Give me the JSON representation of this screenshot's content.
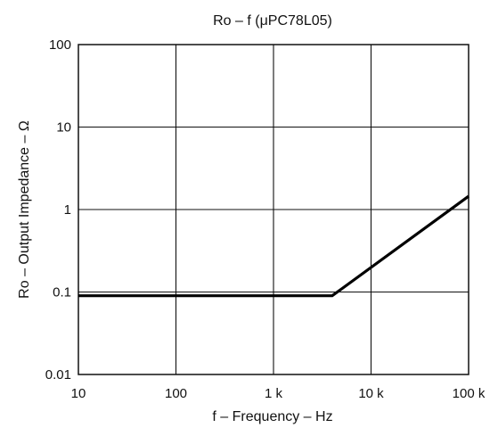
{
  "chart_data": {
    "type": "line",
    "title": "Ro – f (μPC78L05)",
    "xlabel": "f – Frequency – Hz",
    "ylabel": "Ro – Output Impedance – Ω",
    "x_scale": "log",
    "y_scale": "log",
    "xlim": [
      10,
      100000
    ],
    "ylim": [
      0.01,
      100
    ],
    "x_ticks": [
      10,
      100,
      1000,
      10000,
      100000
    ],
    "x_tick_labels": [
      "10",
      "100",
      "1 k",
      "10 k",
      "100 k"
    ],
    "y_ticks": [
      0.01,
      0.1,
      1,
      10,
      100
    ],
    "y_tick_labels": [
      "0.01",
      "0.1",
      "1",
      "10",
      "100"
    ],
    "grid": true,
    "series": [
      {
        "x": [
          10,
          4000,
          100000
        ],
        "y": [
          0.09,
          0.09,
          1.45
        ]
      }
    ]
  }
}
